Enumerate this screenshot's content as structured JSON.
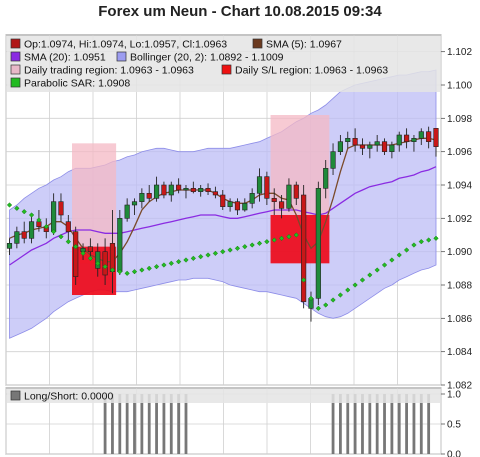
{
  "title": "Forex um Neun - Chart 10.08.2015 09:34",
  "legend": [
    {
      "label": "Op:1.0974, Hi:1.0974, Lo:1.0957, Cl:1.0963",
      "swatch": "#b01818"
    },
    {
      "label": "SMA (5): 1.0967",
      "swatch": "#6b3a1f"
    },
    {
      "label": "SMA (20): 1.0951",
      "swatch": "#8a2be2"
    },
    {
      "label": "Bollinger (20, 2): 1.0892 - 1.1009",
      "swatch": "#9c9cf0"
    },
    {
      "label": "Daily trading region: 1.0963 - 1.0963",
      "swatch": "#e8b8c8"
    },
    {
      "label": "Daily S/L region: 1.0963 - 1.0963",
      "swatch": "#ee1111"
    },
    {
      "label": "Parabolic SAR: 1.0908",
      "swatch": "#22bb22"
    }
  ],
  "chart_data": [
    {
      "type": "candlestick",
      "ylim": [
        1.082,
        1.103
      ],
      "y_ticks": [
        "1.082",
        "1.084",
        "1.086",
        "1.088",
        "1.090",
        "1.092",
        "1.094",
        "1.096",
        "1.098",
        "1.100",
        "1.102"
      ],
      "grid": true,
      "candles": [
        [
          1.0902,
          1.0908,
          1.0898,
          1.0905
        ],
        [
          1.0905,
          1.0915,
          1.0902,
          1.0912
        ],
        [
          1.0912,
          1.0918,
          1.0905,
          1.0908
        ],
        [
          1.0908,
          1.0922,
          1.0905,
          1.0918
        ],
        [
          1.0918,
          1.0925,
          1.0912,
          1.0915
        ],
        [
          1.0915,
          1.092,
          1.0908,
          1.0912
        ],
        [
          1.0912,
          1.0935,
          1.091,
          1.093
        ],
        [
          1.093,
          1.0935,
          1.0918,
          1.0922
        ],
        [
          1.0918,
          1.0922,
          1.0905,
          1.0912
        ],
        [
          1.0912,
          1.0915,
          1.088,
          1.0885
        ],
        [
          1.09,
          1.0905,
          1.0895,
          1.0902
        ],
        [
          1.0903,
          1.0908,
          1.0897,
          1.09
        ],
        [
          1.089,
          1.0905,
          1.0885,
          1.09
        ],
        [
          1.09,
          1.0908,
          1.088,
          1.0886
        ],
        [
          1.0905,
          1.0925,
          1.0875,
          1.0888
        ],
        [
          1.0888,
          1.0925,
          1.0886,
          1.092
        ],
        [
          1.092,
          1.0932,
          1.0918,
          1.0928
        ],
        [
          1.0928,
          1.0932,
          1.0922,
          1.093
        ],
        [
          1.093,
          1.0938,
          1.0926,
          1.0935
        ],
        [
          1.0935,
          1.094,
          1.093,
          1.0932
        ],
        [
          1.0932,
          1.0945,
          1.093,
          1.094
        ],
        [
          1.094,
          1.0942,
          1.0932,
          1.0934
        ],
        [
          1.0934,
          1.0942,
          1.093,
          1.094
        ],
        [
          1.094,
          1.0944,
          1.0935,
          1.0937
        ],
        [
          1.0937,
          1.094,
          1.0932,
          1.0938
        ],
        [
          1.0938,
          1.0942,
          1.0935,
          1.0936
        ],
        [
          1.0936,
          1.094,
          1.0933,
          1.0938
        ],
        [
          1.0938,
          1.0941,
          1.0934,
          1.0936
        ],
        [
          1.0936,
          1.0939,
          1.0932,
          1.0934
        ],
        [
          1.0934,
          1.0937,
          1.0925,
          1.0927
        ],
        [
          1.0927,
          1.0932,
          1.0924,
          1.093
        ],
        [
          1.093,
          1.0932,
          1.0922,
          1.0925
        ],
        [
          1.0925,
          1.0932,
          1.0924,
          1.0929
        ],
        [
          1.0929,
          1.0938,
          1.0926,
          1.0935
        ],
        [
          1.0935,
          1.095,
          1.093,
          1.0945
        ],
        [
          1.0945,
          1.0948,
          1.0928,
          1.0932
        ],
        [
          1.0932,
          1.0938,
          1.0922,
          1.093
        ],
        [
          1.093,
          1.0934,
          1.092,
          1.0926
        ],
        [
          1.0926,
          1.0944,
          1.0924,
          1.094
        ],
        [
          1.094,
          1.0942,
          1.0928,
          1.0932
        ],
        [
          1.0934,
          1.094,
          1.0866,
          1.087
        ],
        [
          1.0866,
          1.0876,
          1.0858,
          1.0872
        ],
        [
          1.0872,
          1.0942,
          1.0868,
          1.0938
        ],
        [
          1.0938,
          1.0955,
          1.0932,
          1.095
        ],
        [
          1.095,
          1.0965,
          1.0946,
          1.096
        ],
        [
          1.096,
          1.097,
          1.0958,
          1.0966
        ],
        [
          1.0966,
          1.0972,
          1.0962,
          1.0968
        ],
        [
          1.0968,
          1.0974,
          1.096,
          1.0964
        ],
        [
          1.0964,
          1.0968,
          1.0958,
          1.0962
        ],
        [
          1.0962,
          1.0966,
          1.0956,
          1.0964
        ],
        [
          1.0964,
          1.097,
          1.096,
          1.0966
        ],
        [
          1.0966,
          1.0968,
          1.0958,
          1.096
        ],
        [
          1.096,
          1.0966,
          1.0956,
          1.0964
        ],
        [
          1.0964,
          1.0972,
          1.096,
          1.097
        ],
        [
          1.097,
          1.0974,
          1.0962,
          1.0966
        ],
        [
          1.0966,
          1.097,
          1.096,
          1.0968
        ],
        [
          1.0968,
          1.0974,
          1.0964,
          1.0972
        ],
        [
          1.0972,
          1.0975,
          1.0962,
          1.0966
        ],
        [
          1.0974,
          1.0974,
          1.0957,
          1.0963
        ]
      ],
      "sma5": [
        1.0908,
        1.091,
        1.0911,
        1.0913,
        1.0914,
        1.0915,
        1.0918,
        1.0918,
        1.0915,
        1.0908,
        1.0902,
        1.0898,
        1.0896,
        1.0894,
        1.0894,
        1.0899,
        1.0906,
        1.0915,
        1.0925,
        1.093,
        1.0933,
        1.0935,
        1.0936,
        1.0937,
        1.0937,
        1.0937,
        1.0937,
        1.0937,
        1.0935,
        1.0932,
        1.093,
        1.0929,
        1.0929,
        1.0931,
        1.0934,
        1.0935,
        1.0935,
        1.0932,
        1.0931,
        1.0922,
        1.091,
        1.0902,
        1.0906,
        1.0918,
        1.0932,
        1.0948,
        1.0962,
        1.0964,
        1.0964,
        1.0964,
        1.0964,
        1.0964,
        1.0964,
        1.0965,
        1.0966,
        1.0967,
        1.0968,
        1.0968,
        1.0967
      ],
      "sma20": [
        1.0892,
        1.0895,
        1.0898,
        1.0901,
        1.0903,
        1.0905,
        1.0908,
        1.091,
        1.0912,
        1.0913,
        1.0913,
        1.0913,
        1.0912,
        1.0911,
        1.0911,
        1.0911,
        1.0912,
        1.0913,
        1.0914,
        1.0915,
        1.0916,
        1.0917,
        1.0918,
        1.0919,
        1.092,
        1.0921,
        1.0922,
        1.0922,
        1.0922,
        1.0921,
        1.092,
        1.092,
        1.0921,
        1.0922,
        1.0923,
        1.0924,
        1.0925,
        1.0925,
        1.0925,
        1.0925,
        1.0924,
        1.0923,
        1.0922,
        1.0923,
        1.0926,
        1.0929,
        1.0932,
        1.0935,
        1.0937,
        1.0939,
        1.094,
        1.0941,
        1.0942,
        1.0944,
        1.0945,
        1.0946,
        1.0948,
        1.0949,
        1.0951
      ],
      "bollinger_upper": [
        1.0925,
        1.0928,
        1.0932,
        1.0935,
        1.0938,
        1.094,
        1.0943,
        1.0945,
        1.0948,
        1.095,
        1.095,
        1.095,
        1.0951,
        1.0952,
        1.0954,
        1.0955,
        1.0957,
        1.0958,
        1.096,
        1.0961,
        1.0962,
        1.0962,
        1.0961,
        1.096,
        1.096,
        1.096,
        1.0961,
        1.0962,
        1.0962,
        1.0962,
        1.0962,
        1.0963,
        1.0964,
        1.0965,
        1.0966,
        1.0968,
        1.097,
        1.0972,
        1.0975,
        1.0978,
        1.098,
        1.0983,
        1.0985,
        1.0988,
        1.0992,
        1.0996,
        1.0998,
        1.1,
        1.1001,
        1.1002,
        1.1003,
        1.1004,
        1.1005,
        1.1006,
        1.1006,
        1.1007,
        1.1008,
        1.1008,
        1.1009
      ],
      "bollinger_lower": [
        1.0848,
        1.085,
        1.0852,
        1.0854,
        1.0857,
        1.086,
        1.0864,
        1.0867,
        1.087,
        1.0872,
        1.0874,
        1.0876,
        1.0877,
        1.0877,
        1.0876,
        1.0876,
        1.0876,
        1.0877,
        1.0878,
        1.0879,
        1.088,
        1.0881,
        1.0882,
        1.0883,
        1.0883,
        1.0884,
        1.0884,
        1.0884,
        1.0883,
        1.0882,
        1.088,
        1.0879,
        1.0878,
        1.0877,
        1.0876,
        1.0876,
        1.0875,
        1.0874,
        1.0873,
        1.0872,
        1.0869,
        1.0866,
        1.0863,
        1.0861,
        1.086,
        1.0861,
        1.0863,
        1.0866,
        1.0869,
        1.0872,
        1.0875,
        1.0878,
        1.088,
        1.0883,
        1.0885,
        1.0887,
        1.0889,
        1.089,
        1.0892
      ],
      "parabolic_sar": [
        1.0928,
        1.0926,
        1.0924,
        1.0922,
        1.0919,
        1.0915,
        1.0912,
        1.0909,
        1.0906,
        1.0903,
        1.0899,
        1.0896,
        1.0893,
        1.0891,
        1.0889,
        1.0888,
        1.0887,
        1.0888,
        1.0889,
        1.089,
        1.0891,
        1.0892,
        1.0893,
        1.0894,
        1.0895,
        1.0896,
        1.0897,
        1.0898,
        1.0899,
        1.09,
        1.0901,
        1.0902,
        1.0903,
        1.0904,
        1.0905,
        1.0906,
        1.0907,
        1.0908,
        1.0909,
        1.091,
        1.0883,
        1.0872,
        1.0866,
        1.0868,
        1.0871,
        1.0874,
        1.0877,
        1.088,
        1.0883,
        1.0886,
        1.0889,
        1.0892,
        1.0895,
        1.0898,
        1.0901,
        1.0904,
        1.0906,
        1.0907,
        1.0908
      ],
      "trading_regions": [
        [
          9,
          14,
          1.0893,
          1.0965
        ],
        [
          36,
          43,
          1.0913,
          1.0982
        ]
      ],
      "sl_regions": [
        [
          9,
          14,
          1.0874,
          1.0903
        ],
        [
          36,
          43,
          1.0893,
          1.0922
        ]
      ]
    },
    {
      "type": "bar",
      "legend": "Long/Short: 0.0000",
      "ylim": [
        0,
        1.1
      ],
      "y_ticks": [
        "0.0",
        "0.5",
        "1.0"
      ],
      "bars": [
        [
          13,
          24,
          1
        ],
        [
          44,
          57,
          1
        ]
      ]
    }
  ]
}
